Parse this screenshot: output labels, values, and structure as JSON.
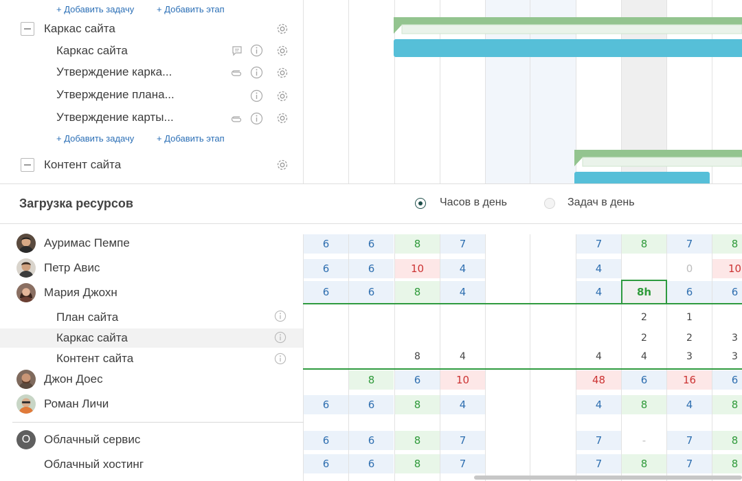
{
  "gantt": {
    "add_task_label": "+ Добавить задачу",
    "add_stage_label": "+ Добавить этап",
    "groups": [
      {
        "name": "Каркас сайта",
        "tasks": [
          "Каркас сайта",
          "Утверждение карка...",
          "Утверждение плана...",
          "Утверждение карты..."
        ]
      },
      {
        "name": "Контент сайта"
      }
    ]
  },
  "resources": {
    "title": "Загрузка ресурсов",
    "toggle": {
      "hours_label": "Часов в день",
      "tasks_label": "Задач в день",
      "selected": "hours"
    },
    "people": [
      {
        "name": "Ауримас Пемпе",
        "cells": [
          "6",
          "6",
          "8",
          "7",
          "",
          "",
          "7",
          "8",
          "7",
          "8"
        ]
      },
      {
        "name": "Петр Авис",
        "cells": [
          "6",
          "6",
          "10",
          "4",
          "",
          "",
          "4",
          "",
          "0",
          "10"
        ]
      },
      {
        "name": "Мария Джохн",
        "cells": [
          "6",
          "6",
          "8",
          "4",
          "",
          "",
          "4",
          "8h",
          "6",
          "6"
        ],
        "subtasks": [
          {
            "name": "План сайта",
            "cells": [
              "",
              "",
              "",
              "",
              "",
              "",
              "",
              "2",
              "1",
              ""
            ]
          },
          {
            "name": "Каркас сайта",
            "cells": [
              "",
              "",
              "",
              "",
              "",
              "",
              "",
              "2",
              "2",
              "3"
            ]
          },
          {
            "name": "Контент сайта",
            "cells": [
              "",
              "",
              "8",
              "4",
              "",
              "",
              "4",
              "4",
              "3",
              "3"
            ]
          }
        ]
      },
      {
        "name": "Джон Доес",
        "cells": [
          "",
          "8",
          "6",
          "10",
          "",
          "",
          "48",
          "6",
          "16",
          "6"
        ]
      },
      {
        "name": "Роман Личи",
        "cells": [
          "6",
          "6",
          "8",
          "4",
          "",
          "",
          "4",
          "8",
          "4",
          "8"
        ]
      }
    ],
    "services": [
      {
        "name": "Облачный сервис",
        "initial": "O",
        "cells": [
          "6",
          "6",
          "8",
          "7",
          "",
          "",
          "7",
          "-",
          "7",
          "8"
        ]
      },
      {
        "name": "Облачный хостинг",
        "cells": [
          "6",
          "6",
          "8",
          "7",
          "",
          "",
          "7",
          "8",
          "7",
          "8"
        ]
      }
    ]
  },
  "colors": {
    "blue_text": "#2f6fb0",
    "green_text": "#2f9a3a",
    "red_text": "#cc3333",
    "gray_text": "#bdbdbd",
    "light_blue_bg": "#ebf2fa",
    "light_green_bg": "#e8f6e8",
    "light_red_bg": "#fde7e7",
    "bar_blue": "#56bfd8",
    "bar_green": "#93c48f",
    "dark_radio": "#1f4e4a"
  }
}
